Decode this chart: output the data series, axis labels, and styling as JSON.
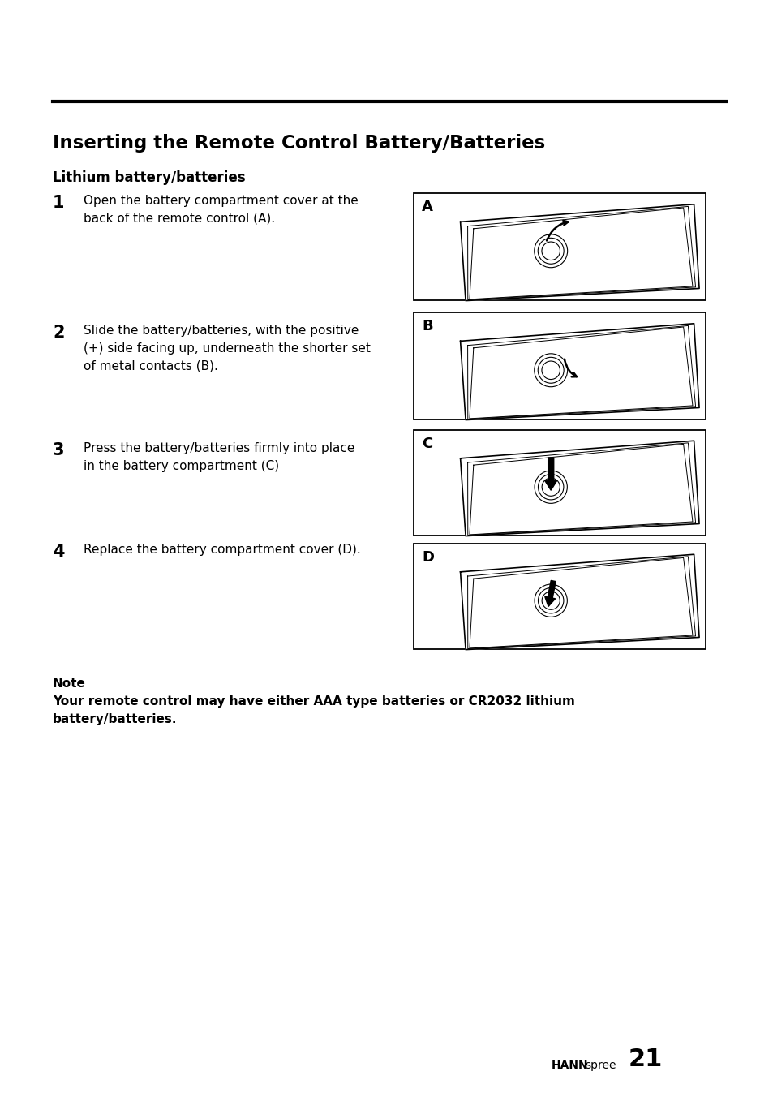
{
  "title": "Inserting the Remote Control Battery/Batteries",
  "subtitle": "Lithium battery/batteries",
  "steps": [
    {
      "number": "1",
      "text": "Open the battery compartment cover at the\nback of the remote control (A).",
      "label": "A",
      "arrow": "up_right"
    },
    {
      "number": "2",
      "text": "Slide the battery/batteries, with the positive\n(+) side facing up, underneath the shorter set\nof metal contacts (B).",
      "label": "B",
      "arrow": "right_curve"
    },
    {
      "number": "3",
      "text": "Press the battery/batteries firmly into place\nin the battery compartment (C)",
      "label": "C",
      "arrow": "down"
    },
    {
      "number": "4",
      "text": "Replace the battery compartment cover (D).",
      "label": "D",
      "arrow": "down_left"
    }
  ],
  "note_title": "Note",
  "note_text": "Your remote control may have either AAA type batteries or CR2032 lithium\nbattery/batteries.",
  "page_brand_bold": "HANN",
  "page_brand_light": "spree",
  "page_number": "21",
  "bg_color": "#ffffff",
  "text_color": "#000000"
}
